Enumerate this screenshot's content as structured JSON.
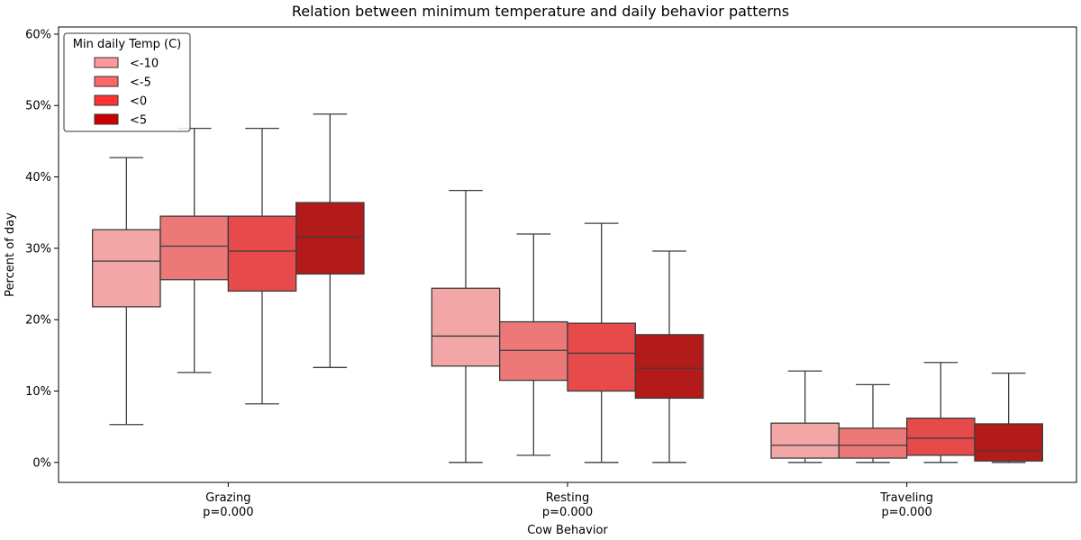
{
  "chart_data": {
    "type": "box",
    "title": "Relation between minimum temperature and daily behavior patterns",
    "xlabel": "Cow Behavior",
    "ylabel": "Percent of day",
    "ylim": [
      -0.028,
      0.61
    ],
    "yticks": [
      0,
      0.1,
      0.2,
      0.3,
      0.4,
      0.5,
      0.6
    ],
    "ytick_labels": [
      "0%",
      "10%",
      "20%",
      "30%",
      "40%",
      "50%",
      "60%"
    ],
    "categories": [
      {
        "name": "Grazing",
        "sublabel": "p=0.000"
      },
      {
        "name": "Resting",
        "sublabel": "p=0.000"
      },
      {
        "name": "Traveling",
        "sublabel": "p=0.000"
      }
    ],
    "legend": {
      "title": "Min daily Temp (C)",
      "placement": "top-left",
      "entries": [
        {
          "label": "<-10",
          "color": "#ff9999"
        },
        {
          "label": "<-5",
          "color": "#ff6666"
        },
        {
          "label": "<0",
          "color": "#ff3333"
        },
        {
          "label": "<5",
          "color": "#cc0000"
        }
      ]
    },
    "box_colors": [
      "#f2a6a6",
      "#ec7878",
      "#e64a4a",
      "#b31a1a"
    ],
    "series": [
      {
        "name": "<-10",
        "boxes": [
          {
            "min": 0.053,
            "q1": 0.218,
            "median": 0.282,
            "q3": 0.326,
            "max": 0.427
          },
          {
            "min": 0.0,
            "q1": 0.135,
            "median": 0.177,
            "q3": 0.244,
            "max": 0.381
          },
          {
            "min": 0.0,
            "q1": 0.006,
            "median": 0.024,
            "q3": 0.055,
            "max": 0.128
          }
        ]
      },
      {
        "name": "<-5",
        "boxes": [
          {
            "min": 0.126,
            "q1": 0.256,
            "median": 0.303,
            "q3": 0.345,
            "max": 0.468
          },
          {
            "min": 0.01,
            "q1": 0.115,
            "median": 0.157,
            "q3": 0.197,
            "max": 0.32
          },
          {
            "min": 0.0,
            "q1": 0.006,
            "median": 0.024,
            "q3": 0.048,
            "max": 0.109
          }
        ]
      },
      {
        "name": "<0",
        "boxes": [
          {
            "min": 0.082,
            "q1": 0.24,
            "median": 0.296,
            "q3": 0.345,
            "max": 0.468
          },
          {
            "min": 0.0,
            "q1": 0.1,
            "median": 0.153,
            "q3": 0.195,
            "max": 0.335
          },
          {
            "min": 0.0,
            "q1": 0.01,
            "median": 0.034,
            "q3": 0.062,
            "max": 0.14
          }
        ]
      },
      {
        "name": "<5",
        "boxes": [
          {
            "min": 0.133,
            "q1": 0.264,
            "median": 0.316,
            "q3": 0.364,
            "max": 0.488
          },
          {
            "min": 0.0,
            "q1": 0.09,
            "median": 0.132,
            "q3": 0.179,
            "max": 0.296
          },
          {
            "min": 0.0,
            "q1": 0.002,
            "median": 0.016,
            "q3": 0.054,
            "max": 0.125
          }
        ]
      }
    ]
  }
}
